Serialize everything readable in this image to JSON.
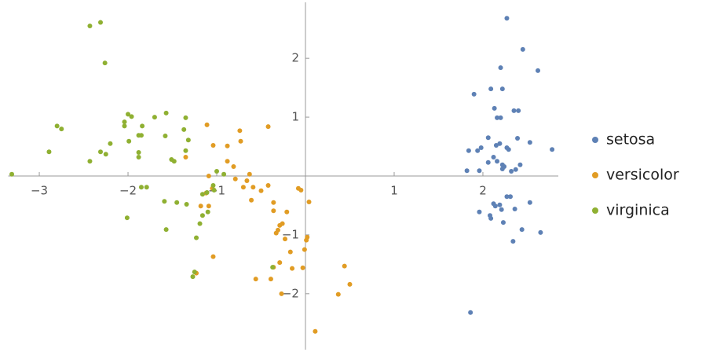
{
  "chart_data": {
    "type": "scatter",
    "xlim": [
      -3.35,
      2.85
    ],
    "ylim": [
      -2.95,
      2.95
    ],
    "xticks": [
      {
        "value": -3,
        "label": "−3"
      },
      {
        "value": -2,
        "label": "−2"
      },
      {
        "value": -1,
        "label": "−1"
      },
      1,
      2
    ],
    "yticks": [
      {
        "value": -2,
        "label": "−2"
      },
      {
        "value": -1,
        "label": "−1"
      },
      1,
      2
    ],
    "legend": "right",
    "series": [
      {
        "name": "setosa",
        "color": "#5e81b5",
        "x": [
          2.27,
          2.45,
          2.62,
          2.2,
          1.9,
          2.09,
          2.22,
          2.13,
          2.35,
          2.4,
          2.16,
          2.2,
          2.06,
          2.19,
          2.39,
          2.53,
          1.84,
          1.94,
          1.98,
          2.15,
          2.27,
          2.29,
          2.78,
          2.12,
          2.16,
          2.06,
          2.22,
          2.22,
          2.42,
          2.24,
          2.32,
          2.37,
          1.82,
          1.96,
          2.27,
          2.31,
          2.53,
          2.12,
          2.14,
          2.19,
          1.96,
          2.21,
          2.36,
          2.08,
          2.09,
          2.23,
          2.44,
          2.65,
          2.34,
          1.86
        ],
        "values": [
          2.68,
          2.15,
          1.79,
          1.84,
          1.39,
          1.48,
          1.48,
          1.15,
          1.11,
          1.11,
          0.99,
          0.99,
          0.65,
          0.55,
          0.64,
          0.57,
          0.43,
          0.43,
          0.48,
          0.52,
          0.48,
          0.45,
          0.45,
          0.32,
          0.25,
          0.23,
          0.19,
          0.12,
          0.19,
          0.16,
          0.08,
          0.11,
          0.09,
          0.09,
          -0.35,
          -0.35,
          -0.45,
          -0.47,
          -0.51,
          -0.49,
          -0.61,
          -0.57,
          -0.56,
          -0.67,
          -0.72,
          -0.79,
          -0.91,
          -0.96,
          -1.11,
          -2.32
        ]
      },
      {
        "name": "versicolor",
        "color": "#e19c24",
        "x": [
          0.11,
          0.37,
          0.5,
          0.44,
          -0.03,
          -0.15,
          -0.27,
          -0.39,
          -0.56,
          -0.36,
          -0.29,
          -0.17,
          -0.23,
          0.02,
          0.01,
          -0.01,
          -0.33,
          -0.29,
          -0.26,
          -0.31,
          -0.36,
          -0.21,
          -0.36,
          0.04,
          -0.61,
          -0.5,
          -0.42,
          -0.08,
          -0.05,
          -0.7,
          -0.66,
          -0.59,
          -0.63,
          -0.79,
          -0.88,
          -1.04,
          -0.88,
          -0.73,
          -0.74,
          -1.11,
          -0.42,
          -0.81,
          -1.09,
          -1.35,
          -1.05,
          -1.12,
          -1.18,
          -1.09,
          -1.23,
          -1.04
        ],
        "values": [
          -2.64,
          -2.01,
          -1.84,
          -1.53,
          -1.56,
          -1.57,
          -2.0,
          -1.75,
          -1.75,
          -1.55,
          -1.47,
          -1.29,
          -1.07,
          -1.04,
          -1.09,
          -1.25,
          -0.97,
          -0.84,
          -0.81,
          -0.92,
          -0.59,
          -0.61,
          -0.45,
          -0.44,
          -0.41,
          -0.25,
          -0.16,
          -0.21,
          -0.24,
          -0.19,
          -0.08,
          -0.19,
          0.03,
          -0.05,
          0.25,
          0.52,
          0.51,
          0.59,
          0.77,
          0.87,
          0.84,
          0.16,
          0.0,
          0.32,
          -0.21,
          -0.29,
          -0.51,
          -0.51,
          -1.65,
          -1.37
        ]
      },
      {
        "name": "virginica",
        "color": "#8fb032",
        "x": [
          -3.31,
          -2.31,
          -2.43,
          -2.26,
          -2.8,
          -2.75,
          -2.89,
          -2.43,
          -2.31,
          -2.2,
          -2.0,
          -1.96,
          -2.04,
          -2.04,
          -1.99,
          -1.88,
          -1.85,
          -1.84,
          -1.88,
          -1.88,
          -1.7,
          -1.57,
          -1.58,
          -1.51,
          -1.48,
          -1.35,
          -1.35,
          -1.37,
          -1.32,
          -1.0,
          -0.92,
          -1.85,
          -1.79,
          -1.59,
          -1.45,
          -1.34,
          -1.16,
          -1.11,
          -1.04,
          -1.16,
          -1.1,
          -1.19,
          -1.23,
          -1.57,
          -2.01,
          -1.27,
          -1.25,
          -0.37,
          -1.03,
          -2.25
        ],
        "values": [
          0.03,
          2.61,
          2.55,
          1.92,
          0.85,
          0.8,
          0.41,
          0.25,
          0.41,
          0.55,
          1.05,
          1.01,
          0.92,
          0.85,
          0.59,
          0.69,
          0.69,
          0.85,
          0.4,
          0.32,
          1.0,
          1.07,
          0.68,
          0.28,
          0.25,
          0.43,
          0.99,
          0.79,
          0.61,
          0.08,
          0.03,
          -0.19,
          -0.19,
          -0.43,
          -0.45,
          -0.48,
          -0.31,
          -0.28,
          -0.16,
          -0.67,
          -0.61,
          -0.81,
          -1.05,
          -0.91,
          -0.71,
          -1.71,
          -1.63,
          -1.55,
          -0.24,
          0.37
        ]
      }
    ]
  }
}
